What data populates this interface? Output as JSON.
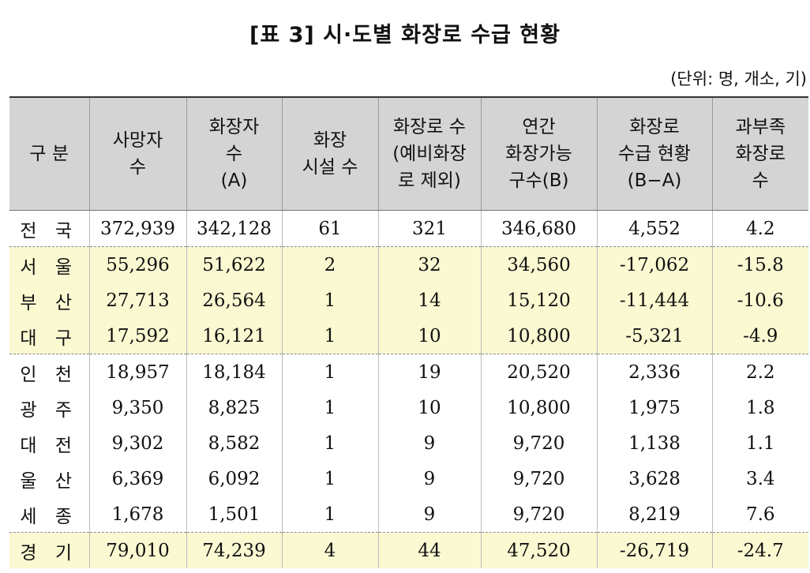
{
  "title": "[표 3] 시·도별 화장로 수급 현황",
  "unit": "(단위: 명, 개소, 기)",
  "headers": [
    "구 분",
    "사망자\n수",
    "화장자\n수\n(A)",
    "화장\n시설 수",
    "화장로 수\n(예비화장\n로 제외)",
    "연간\n화장가능\n구수(B)",
    "화장로\n수급 현황\n(B−A)",
    "과부족\n화장로\n수"
  ],
  "rows": [
    {
      "region": "전 국",
      "deaths": "372,939",
      "cremations": "342,128",
      "facilities": "61",
      "furnaces": "321",
      "capacity": "346,680",
      "balance": "4,552",
      "shortage": "4.2"
    },
    {
      "region": "서 울",
      "deaths": "55,296",
      "cremations": "51,622",
      "facilities": "2",
      "furnaces": "32",
      "capacity": "34,560",
      "balance": "-17,062",
      "shortage": "-15.8"
    },
    {
      "region": "부 산",
      "deaths": "27,713",
      "cremations": "26,564",
      "facilities": "1",
      "furnaces": "14",
      "capacity": "15,120",
      "balance": "-11,444",
      "shortage": "-10.6"
    },
    {
      "region": "대 구",
      "deaths": "17,592",
      "cremations": "16,121",
      "facilities": "1",
      "furnaces": "10",
      "capacity": "10,800",
      "balance": "-5,321",
      "shortage": "-4.9"
    },
    {
      "region": "인 천",
      "deaths": "18,957",
      "cremations": "18,184",
      "facilities": "1",
      "furnaces": "19",
      "capacity": "20,520",
      "balance": "2,336",
      "shortage": "2.2"
    },
    {
      "region": "광 주",
      "deaths": "9,350",
      "cremations": "8,825",
      "facilities": "1",
      "furnaces": "10",
      "capacity": "10,800",
      "balance": "1,975",
      "shortage": "1.8"
    },
    {
      "region": "대 전",
      "deaths": "9,302",
      "cremations": "8,582",
      "facilities": "1",
      "furnaces": "9",
      "capacity": "9,720",
      "balance": "1,138",
      "shortage": "1.1"
    },
    {
      "region": "울 산",
      "deaths": "6,369",
      "cremations": "6,092",
      "facilities": "1",
      "furnaces": "9",
      "capacity": "9,720",
      "balance": "3,628",
      "shortage": "3.4"
    },
    {
      "region": "세 종",
      "deaths": "1,678",
      "cremations": "1,501",
      "facilities": "1",
      "furnaces": "9",
      "capacity": "9,720",
      "balance": "8,219",
      "shortage": "7.6"
    },
    {
      "region": "경 기",
      "deaths": "79,010",
      "cremations": "74,239",
      "facilities": "4",
      "furnaces": "44",
      "capacity": "47,520",
      "balance": "-26,719",
      "shortage": "-24.7"
    }
  ],
  "highlight_color": "#fbf9d2",
  "header_bg": "#d4d4d4"
}
